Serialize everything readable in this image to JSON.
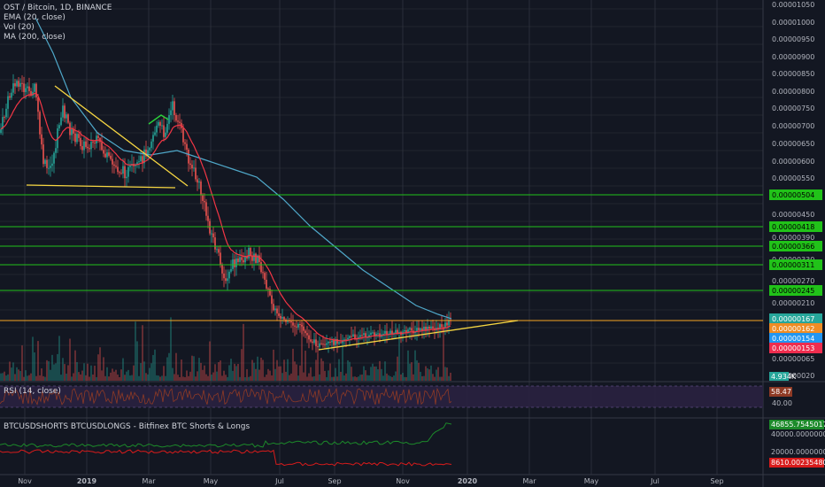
{
  "header": {
    "symbol": "OST / Bitcoin, 1D, BINANCE",
    "ema": "EMA (20, close)",
    "vol": "Vol (20)",
    "ma": "MA (200, close)"
  },
  "rsi": {
    "label": "RSI (14, close)",
    "value": "58.47",
    "level": "40.00"
  },
  "bitfinex": {
    "label": "BTCUSDSHORTS BTCUSDLONGS - Bitfinex BTC Shorts & Longs",
    "axis": [
      "40000.00000000",
      "20000.00000000"
    ],
    "longs_tag": "46855.75450174",
    "shorts_tag": "8610.00235480"
  },
  "price_axis": {
    "ticks": [
      "0.00001050",
      "0.00001000",
      "0.00000950",
      "0.00000900",
      "0.00000850",
      "0.00000800",
      "0.00000750",
      "0.00000700",
      "0.00000650",
      "0.00000600",
      "0.00000550",
      "0.00000450",
      "0.00000390",
      "0.00000330",
      "0.00000270",
      "0.00000210",
      "0.00000065",
      "0.00000020"
    ],
    "level_tags": [
      "0.00000504",
      "0.00000418",
      "0.00000366",
      "0.00000311",
      "0.00000245"
    ],
    "price_tags": [
      {
        "text": "0.00000167",
        "color": "#26a69a"
      },
      {
        "text": "0.00000162",
        "color": "#ef8c24"
      },
      {
        "text": "0.00000154",
        "color": "#2196f3"
      },
      {
        "text": "0.00000153",
        "color": "#ef2d4e"
      }
    ],
    "volume_tag": "4.934K"
  },
  "time_axis": [
    "Nov",
    "2019",
    "Mar",
    "May",
    "Jul",
    "Sep",
    "Nov",
    "2020",
    "Mar",
    "May",
    "Jul",
    "Sep"
  ],
  "colors": {
    "background": "#131722",
    "grid": "#2a2e39",
    "up": "#26a69a",
    "down": "#ef5350",
    "ema": "#f23645",
    "ma": "#4fa8c9",
    "level": "#21c219",
    "trend": "#f7d742",
    "rsi_line": "#8f3a25",
    "rsi_band": "#2a2140",
    "longs": "#1c8a2a",
    "shorts": "#d81b1b"
  }
}
